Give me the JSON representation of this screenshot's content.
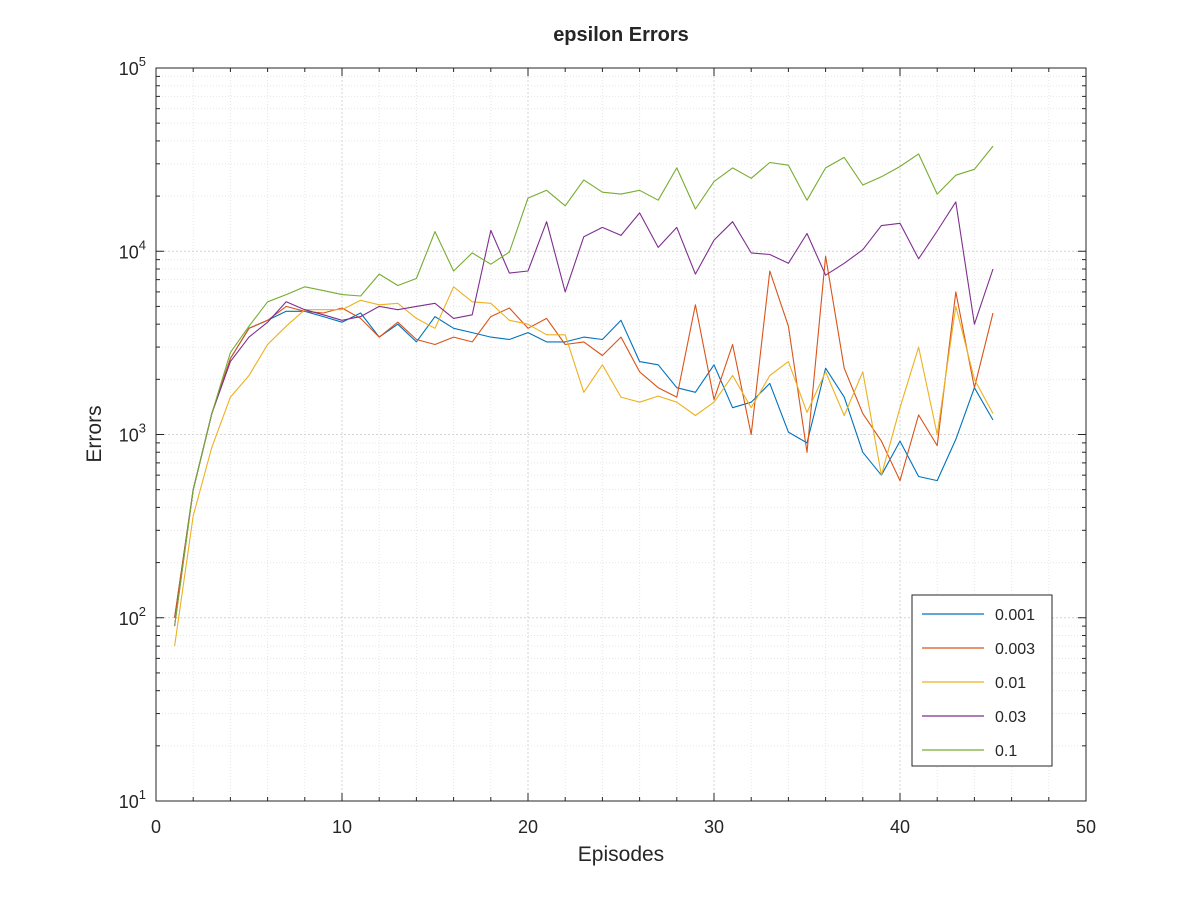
{
  "chart_data": {
    "type": "line",
    "title": "epsilon Errors",
    "xlabel": "Episodes",
    "ylabel": "Errors",
    "xlim": [
      0,
      50
    ],
    "ylim": [
      10,
      100000
    ],
    "yscale": "log",
    "grid": true,
    "legend_position": "bottom-right",
    "x_ticks": [
      0,
      10,
      20,
      30,
      40,
      50
    ],
    "y_ticks": [
      {
        "value": 10,
        "base": "10",
        "exp": "1"
      },
      {
        "value": 100,
        "base": "10",
        "exp": "2"
      },
      {
        "value": 1000,
        "base": "10",
        "exp": "3"
      },
      {
        "value": 10000,
        "base": "10",
        "exp": "4"
      },
      {
        "value": 100000,
        "base": "10",
        "exp": "5"
      }
    ],
    "x": [
      1,
      2,
      3,
      4,
      5,
      6,
      7,
      8,
      9,
      10,
      11,
      12,
      13,
      14,
      15,
      16,
      17,
      18,
      19,
      20,
      21,
      22,
      23,
      24,
      25,
      26,
      27,
      28,
      29,
      30,
      31,
      32,
      33,
      34,
      35,
      36,
      37,
      38,
      39,
      40,
      41,
      42,
      43,
      44,
      45
    ],
    "series": [
      {
        "name": "0.001",
        "color": "#0072bd",
        "values": [
          100,
          500,
          1300,
          2600,
          3800,
          4200,
          4700,
          4700,
          4400,
          4100,
          4600,
          3400,
          4000,
          3200,
          4400,
          3800,
          3600,
          3400,
          3300,
          3600,
          3200,
          3200,
          3400,
          3300,
          4200,
          2500,
          2400,
          1800,
          1700,
          2400,
          1400,
          1500,
          1900,
          1030,
          900,
          2300,
          1600,
          800,
          600,
          920,
          590,
          560,
          940,
          1800,
          1200
        ]
      },
      {
        "name": "0.003",
        "color": "#d95319",
        "values": [
          100,
          500,
          1300,
          2600,
          3800,
          4200,
          5000,
          4700,
          4600,
          4900,
          4300,
          3400,
          4100,
          3300,
          3100,
          3400,
          3200,
          4400,
          4900,
          3800,
          4300,
          3100,
          3200,
          2700,
          3400,
          2200,
          1800,
          1600,
          5100,
          1550,
          3100,
          1000,
          7800,
          3900,
          800,
          9400,
          2300,
          1300,
          920,
          560,
          1280,
          870,
          6000,
          1800,
          4600
        ]
      },
      {
        "name": "0.01",
        "color": "#edb120",
        "values": [
          70,
          360,
          850,
          1600,
          2100,
          3100,
          3900,
          4800,
          4800,
          4800,
          5400,
          5100,
          5200,
          4300,
          3800,
          6400,
          5300,
          5200,
          4200,
          4000,
          3500,
          3500,
          1700,
          2400,
          1600,
          1500,
          1620,
          1500,
          1270,
          1500,
          2100,
          1400,
          2100,
          2500,
          1320,
          2200,
          1270,
          2200,
          600,
          1400,
          3000,
          1000,
          5000,
          2000,
          1300
        ]
      },
      {
        "name": "0.03",
        "color": "#7e2f8e",
        "values": [
          90,
          500,
          1300,
          2500,
          3400,
          4100,
          5300,
          4800,
          4500,
          4200,
          4400,
          5000,
          4800,
          5000,
          5200,
          4300,
          4500,
          13000,
          7600,
          7800,
          14500,
          6000,
          12000,
          13500,
          12200,
          16200,
          10500,
          13500,
          7500,
          11500,
          14500,
          9800,
          9600,
          8600,
          12500,
          7400,
          8600,
          10200,
          13800,
          14200,
          9100,
          12900,
          18600,
          4000,
          8000
        ]
      },
      {
        "name": "0.1",
        "color": "#77ac30",
        "values": [
          90,
          500,
          1300,
          2800,
          3900,
          5300,
          5800,
          6400,
          6100,
          5800,
          5700,
          7500,
          6500,
          7100,
          12800,
          7800,
          9800,
          8500,
          9900,
          19500,
          21500,
          17700,
          24500,
          21000,
          20500,
          21500,
          19000,
          28500,
          17000,
          24000,
          28500,
          25000,
          30500,
          29500,
          19000,
          28500,
          32500,
          23000,
          25500,
          29000,
          34000,
          20500,
          26000,
          28000,
          37500
        ]
      }
    ]
  }
}
